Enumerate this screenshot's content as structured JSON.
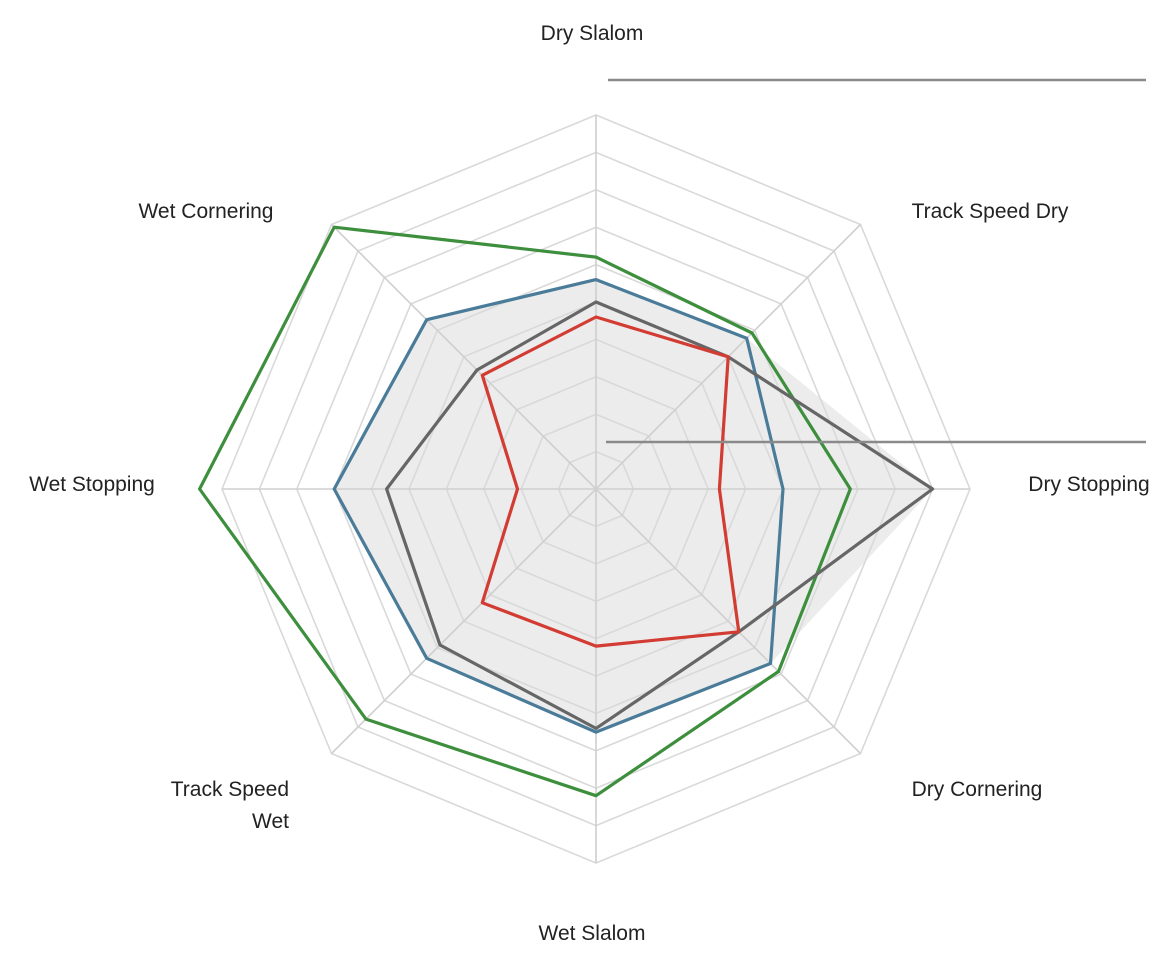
{
  "chart_data": {
    "type": "radar",
    "axes": [
      "Dry Slalom",
      "Track Speed Dry",
      "Dry Stopping",
      "Dry Cornering",
      "Wet Slalom",
      "Track Speed Wet",
      "Wet Stopping",
      "Wet Cornering"
    ],
    "axis_label_lines": [
      [
        "Dry Slalom"
      ],
      [
        "Track Speed Dry"
      ],
      [
        "Dry Stopping"
      ],
      [
        "Dry Cornering"
      ],
      [
        "Wet Slalom"
      ],
      [
        "Track Speed",
        "Wet"
      ],
      [
        "Wet Stopping"
      ],
      [
        "Wet Cornering"
      ]
    ],
    "range": [
      0,
      10
    ],
    "grid_levels": 10,
    "grid": true,
    "series": [
      {
        "color": "#3d8f3d",
        "values": [
          6.2,
          5.9,
          6.8,
          6.9,
          8.2,
          8.7,
          10.6,
          9.9
        ]
      },
      {
        "color": "#4a7c99",
        "values": [
          5.6,
          5.7,
          5.0,
          6.6,
          6.5,
          6.4,
          7.0,
          6.4
        ]
      },
      {
        "color": "#666666",
        "values": [
          5.0,
          5.0,
          9.0,
          5.4,
          6.4,
          5.9,
          5.6,
          4.5
        ]
      },
      {
        "color": "#d23c32",
        "values": [
          4.6,
          5.0,
          3.3,
          5.4,
          4.2,
          4.3,
          2.1,
          4.3
        ]
      }
    ],
    "envelope_fill": "#ececec"
  }
}
